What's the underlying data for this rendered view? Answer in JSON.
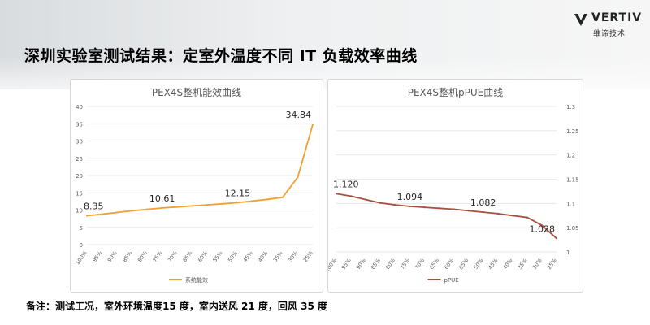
{
  "slide": {
    "title": "深圳实验室测试结果：定室外温度不同 IT 负载效率曲线",
    "footnote": "备注：测试工况，室外环境温度15 度，室内送风 21 度，回风 35 度"
  },
  "logo": {
    "name": "VERTIV",
    "subtitle": "维谛技术"
  },
  "colors": {
    "efficiency_line": "#f0a030",
    "ppue_line": "#a8503f",
    "grid": "#e3e3e3",
    "axis_text": "#595959"
  },
  "chart_data": [
    {
      "type": "line",
      "title": "PEX4S整机能效曲线",
      "categories": [
        "100%",
        "95%",
        "90%",
        "85%",
        "80%",
        "75%",
        "70%",
        "65%",
        "60%",
        "55%",
        "50%",
        "45%",
        "40%",
        "35%",
        "30%",
        "25%"
      ],
      "series": [
        {
          "name": "系统能效",
          "values": [
            8.35,
            8.8,
            9.3,
            9.8,
            10.2,
            10.61,
            10.9,
            11.2,
            11.5,
            11.8,
            12.15,
            12.6,
            13.1,
            13.7,
            19.5,
            34.84
          ]
        }
      ],
      "data_labels": [
        {
          "index": 0,
          "text": "8.35"
        },
        {
          "index": 5,
          "text": "10.61"
        },
        {
          "index": 10,
          "text": "12.15"
        },
        {
          "index": 15,
          "text": "34.84"
        }
      ],
      "ylim": [
        0,
        40
      ],
      "yticks": [
        0,
        5,
        10,
        15,
        20,
        25,
        30,
        35,
        40
      ],
      "y_axis_side": "left",
      "grid": true,
      "legend_position": "bottom"
    },
    {
      "type": "line",
      "title": "PEX4S整机pPUE曲线",
      "categories": [
        "100%",
        "95%",
        "90%",
        "85%",
        "80%",
        "75%",
        "70%",
        "65%",
        "60%",
        "55%",
        "50%",
        "45%",
        "40%",
        "35%",
        "30%",
        "25%"
      ],
      "series": [
        {
          "name": "pPUE",
          "values": [
            1.12,
            1.115,
            1.108,
            1.101,
            1.097,
            1.094,
            1.092,
            1.09,
            1.088,
            1.085,
            1.082,
            1.079,
            1.075,
            1.071,
            1.055,
            1.028
          ]
        }
      ],
      "data_labels": [
        {
          "index": 0,
          "text": "1.120"
        },
        {
          "index": 5,
          "text": "1.094"
        },
        {
          "index": 10,
          "text": "1.082"
        },
        {
          "index": 15,
          "text": "1.028"
        }
      ],
      "ylim": [
        1,
        1.3
      ],
      "yticks": [
        1,
        1.05,
        1.1,
        1.15,
        1.2,
        1.25,
        1.3
      ],
      "ytick_labels": [
        "1",
        "1.05",
        "1.1",
        "1.15",
        "1.2",
        "1.25",
        "1.3"
      ],
      "y_axis_side": "right",
      "grid": true,
      "legend_position": "bottom"
    }
  ]
}
